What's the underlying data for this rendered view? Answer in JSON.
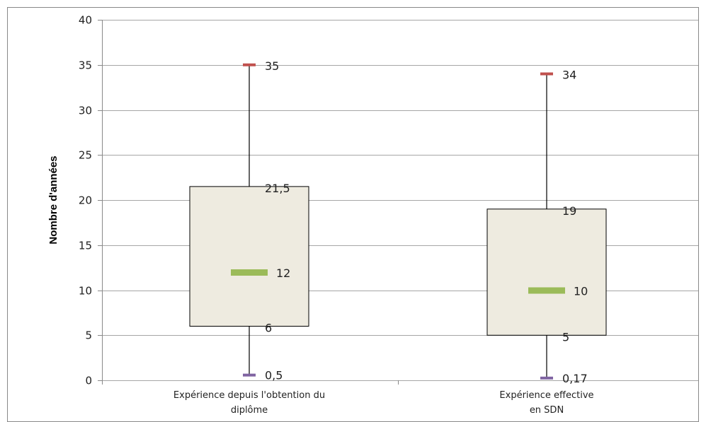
{
  "chart_data": {
    "type": "box",
    "ylabel": "Nombre d'années",
    "ylim": [
      0,
      40
    ],
    "yticks": [
      "0",
      "5",
      "10",
      "15",
      "20",
      "25",
      "30",
      "35",
      "40"
    ],
    "grid": true,
    "categories": [
      {
        "label_lines": [
          "Expérience depuis l'obtention du",
          "diplôme"
        ]
      },
      {
        "label_lines": [
          "Expérience  effective",
          "en SDN"
        ]
      }
    ],
    "boxes": [
      {
        "min": 0.5,
        "q1": 6,
        "median": 12,
        "q3": 21.5,
        "max": 35,
        "labels": {
          "min": "0,5",
          "q1": "6",
          "median": "12",
          "q3": "21,5",
          "max": "35"
        }
      },
      {
        "min": 0.17,
        "q1": 5,
        "median": 10,
        "q3": 19,
        "max": 34,
        "labels": {
          "min": "0,17",
          "q1": "5",
          "median": "10",
          "q3": "19",
          "max": "34"
        }
      }
    ],
    "colors": {
      "box_fill": "#EEEBE0",
      "max_marker": "#C0504D",
      "min_marker": "#8064A2",
      "median_marker": "#9BBB59",
      "grid": "#A6A6A6"
    }
  }
}
